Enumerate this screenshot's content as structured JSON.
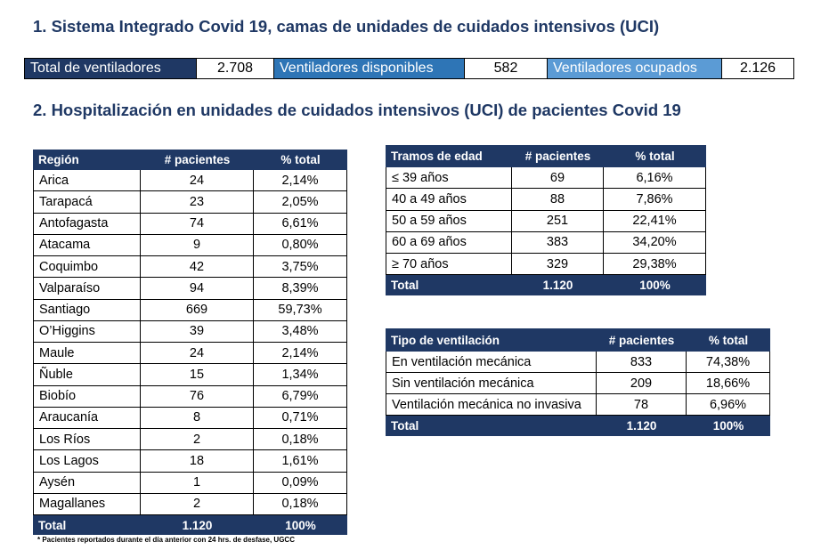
{
  "section_1": {
    "title": "1. Sistema Integrado Covid 19, camas de unidades de cuidados intensivos (UCI)"
  },
  "ventilators": {
    "total": {
      "label": "Total de ventiladores",
      "value": "2.708"
    },
    "available": {
      "label": "Ventiladores disponibles",
      "value": "582"
    },
    "occupied": {
      "label": "Ventiladores ocupados",
      "value": "2.126"
    }
  },
  "section_2": {
    "title": "2. Hospitalización en unidades de cuidados intensivos (UCI) de pacientes Covid 19"
  },
  "regions": {
    "headers": {
      "name": "Región",
      "patients": "# pacientes",
      "percent": "% total"
    },
    "rows": [
      {
        "name": "Arica",
        "patients": "24",
        "percent": "2,14%"
      },
      {
        "name": "Tarapacá",
        "patients": "23",
        "percent": "2,05%"
      },
      {
        "name": "Antofagasta",
        "patients": "74",
        "percent": "6,61%"
      },
      {
        "name": "Atacama",
        "patients": "9",
        "percent": "0,80%"
      },
      {
        "name": "Coquimbo",
        "patients": "42",
        "percent": "3,75%"
      },
      {
        "name": "Valparaíso",
        "patients": "94",
        "percent": "8,39%"
      },
      {
        "name": "Santiago",
        "patients": "669",
        "percent": "59,73%"
      },
      {
        "name": "O’Higgins",
        "patients": "39",
        "percent": "3,48%"
      },
      {
        "name": "Maule",
        "patients": "24",
        "percent": "2,14%"
      },
      {
        "name": "Ñuble",
        "patients": "15",
        "percent": "1,34%"
      },
      {
        "name": "Biobío",
        "patients": "76",
        "percent": "6,79%"
      },
      {
        "name": "Araucanía",
        "patients": "8",
        "percent": "0,71%"
      },
      {
        "name": "Los Ríos",
        "patients": "2",
        "percent": "0,18%"
      },
      {
        "name": "Los Lagos",
        "patients": "18",
        "percent": "1,61%"
      },
      {
        "name": "Aysén",
        "patients": "1",
        "percent": "0,09%"
      },
      {
        "name": "Magallanes",
        "patients": "2",
        "percent": "0,18%"
      }
    ],
    "total": {
      "name": "Total",
      "patients": "1.120",
      "percent": "100%"
    },
    "footnote": "* Pacientes reportados durante el día anterior con 24 hrs. de desfase, UGCC"
  },
  "age_groups": {
    "headers": {
      "name": "Tramos de edad",
      "patients": "# pacientes",
      "percent": "% total"
    },
    "rows": [
      {
        "name": "≤ 39 años",
        "patients": "69",
        "percent": "6,16%"
      },
      {
        "name": "40 a 49 años",
        "patients": "88",
        "percent": "7,86%"
      },
      {
        "name": "50 a 59 años",
        "patients": "251",
        "percent": "22,41%"
      },
      {
        "name": "60 a 69 años",
        "patients": "383",
        "percent": "34,20%"
      },
      {
        "name": "≥ 70 años",
        "patients": "329",
        "percent": "29,38%"
      }
    ],
    "total": {
      "name": "Total",
      "patients": "1.120",
      "percent": "100%"
    }
  },
  "ventilation_types": {
    "headers": {
      "name": "Tipo de ventilación",
      "patients": "# pacientes",
      "percent": "% total"
    },
    "rows": [
      {
        "name": "En ventilación mecánica",
        "patients": "833",
        "percent": "74,38%"
      },
      {
        "name": "Sin ventilación mecánica",
        "patients": "209",
        "percent": "18,66%"
      },
      {
        "name": "Ventilación mecánica no invasiva",
        "patients": "78",
        "percent": "6,96%"
      }
    ],
    "total": {
      "name": "Total",
      "patients": "1.120",
      "percent": "100%"
    }
  },
  "colors": {
    "title_text": "#1f3864",
    "header_fill": "#1f3864",
    "available_fill": "#2e75b6",
    "occupied_fill": "#5b9bd5",
    "grid_lines": "#000000"
  }
}
